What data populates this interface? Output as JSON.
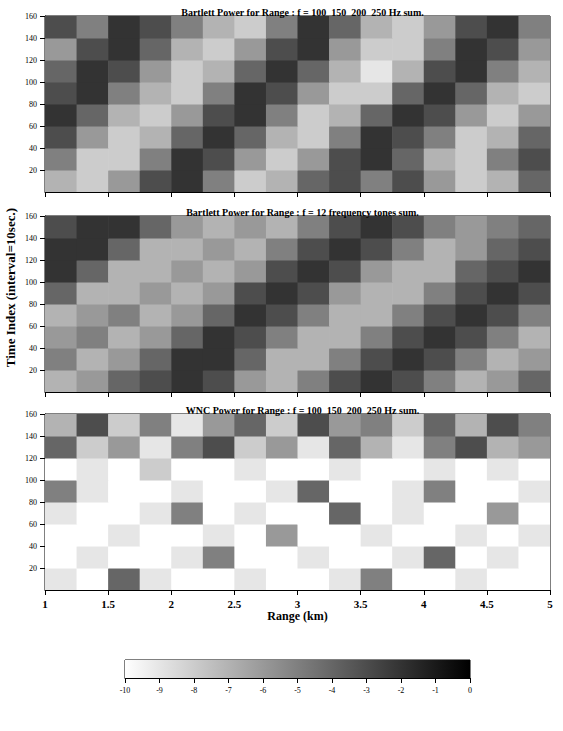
{
  "chart_data": {
    "type": "heatmap",
    "x_label": "Range (km)",
    "y_label": "Time Index (interval=10sec.)",
    "xlim": [
      1,
      5
    ],
    "xticks": [
      1,
      1.5,
      2,
      2.5,
      3,
      3.5,
      4,
      4.5,
      5
    ],
    "ylim": [
      0,
      160
    ],
    "yticks": [
      20,
      40,
      60,
      80,
      100,
      120,
      140,
      160
    ],
    "x": [
      1.125,
      1.375,
      1.625,
      1.875,
      2.125,
      2.375,
      2.625,
      2.875,
      3.125,
      3.375,
      3.625,
      3.875,
      4.125,
      4.375,
      4.625,
      4.875
    ],
    "y": [
      10,
      30,
      50,
      70,
      90,
      110,
      130,
      150
    ],
    "colorbar": {
      "range": [
        -10,
        0
      ],
      "ticks": [
        -10,
        -9,
        -8,
        -7,
        -6,
        -5,
        -4,
        -3,
        -2,
        -1,
        0
      ]
    },
    "panels": [
      {
        "title": "Bartlett Power for Range : f = 100  150  200  250 Hz sum.",
        "tick_labels": "y",
        "cells": [
          [
            -7,
            -8,
            -6,
            -3,
            -2,
            -5,
            -8,
            -7,
            -4,
            -3,
            -5,
            -3,
            -6,
            -8,
            -7,
            -4
          ],
          [
            -5,
            -8,
            -8,
            -5,
            -2,
            -3,
            -6,
            -8,
            -6,
            -3,
            -2,
            -4,
            -7,
            -8,
            -5,
            -3
          ],
          [
            -3,
            -6,
            -8,
            -7,
            -4,
            -2,
            -4,
            -7,
            -8,
            -5,
            -2,
            -3,
            -5,
            -8,
            -7,
            -4
          ],
          [
            -2,
            -4,
            -7,
            -8,
            -6,
            -3,
            -2,
            -5,
            -8,
            -7,
            -4,
            -2,
            -3,
            -6,
            -8,
            -6
          ],
          [
            -3,
            -2,
            -5,
            -7,
            -8,
            -5,
            -2,
            -3,
            -6,
            -8,
            -8,
            -4,
            -2,
            -4,
            -7,
            -8
          ],
          [
            -4,
            -2,
            -3,
            -6,
            -8,
            -7,
            -4,
            -2,
            -4,
            -7,
            -9,
            -7,
            -3,
            -2,
            -5,
            -7
          ],
          [
            -6,
            -3,
            -2,
            -4,
            -7,
            -8,
            -6,
            -3,
            -2,
            -6,
            -8,
            -8,
            -5,
            -2,
            -3,
            -6
          ],
          [
            -3,
            -5,
            -2,
            -3,
            -5,
            -7,
            -8,
            -5,
            -2,
            -4,
            -7,
            -8,
            -6,
            -3,
            -2,
            -5
          ]
        ]
      },
      {
        "title": "Bartlett Power for Range : f = 12 frequency tones sum.",
        "tick_labels": "y",
        "cells": [
          [
            -7,
            -6,
            -4,
            -3,
            -2,
            -3,
            -6,
            -7,
            -5,
            -3,
            -2,
            -3,
            -5,
            -7,
            -6,
            -4
          ],
          [
            -5,
            -7,
            -6,
            -4,
            -2,
            -2,
            -4,
            -7,
            -7,
            -5,
            -3,
            -2,
            -3,
            -5,
            -7,
            -6
          ],
          [
            -6,
            -5,
            -7,
            -6,
            -4,
            -2,
            -3,
            -5,
            -7,
            -7,
            -5,
            -3,
            -2,
            -3,
            -5,
            -7
          ],
          [
            -7,
            -6,
            -5,
            -7,
            -6,
            -4,
            -2,
            -3,
            -5,
            -7,
            -7,
            -5,
            -3,
            -2,
            -3,
            -5
          ],
          [
            -4,
            -7,
            -7,
            -6,
            -7,
            -6,
            -3,
            -2,
            -3,
            -6,
            -7,
            -7,
            -5,
            -3,
            -2,
            -3
          ],
          [
            -2,
            -4,
            -7,
            -7,
            -6,
            -7,
            -6,
            -3,
            -2,
            -3,
            -6,
            -7,
            -7,
            -4,
            -3,
            -2
          ],
          [
            -2,
            -2,
            -4,
            -7,
            -7,
            -6,
            -7,
            -5,
            -3,
            -2,
            -3,
            -5,
            -7,
            -6,
            -4,
            -3
          ],
          [
            -3,
            -2,
            -2,
            -4,
            -6,
            -7,
            -6,
            -7,
            -5,
            -3,
            -2,
            -3,
            -5,
            -6,
            -5,
            -4
          ]
        ]
      },
      {
        "title": "WNC Power for Range : f = 100  150  200  250 Hz sum.",
        "cells": [
          [
            -9,
            -10,
            -4,
            -9,
            -10,
            -10,
            -9,
            -10,
            -10,
            -9,
            -5,
            -10,
            -10,
            -9,
            -10,
            -10
          ],
          [
            -10,
            -9,
            -10,
            -10,
            -9,
            -5,
            -10,
            -10,
            -9,
            -10,
            -10,
            -9,
            -4,
            -10,
            -9,
            -10
          ],
          [
            -10,
            -10,
            -9,
            -10,
            -10,
            -9,
            -10,
            -6,
            -10,
            -10,
            -9,
            -10,
            -10,
            -9,
            -10,
            -9
          ],
          [
            -9,
            -10,
            -10,
            -9,
            -5,
            -10,
            -9,
            -10,
            -10,
            -4,
            -10,
            -9,
            -10,
            -10,
            -6,
            -10
          ],
          [
            -5,
            -9,
            -10,
            -10,
            -9,
            -10,
            -10,
            -9,
            -4,
            -10,
            -10,
            -9,
            -5,
            -10,
            -10,
            -9
          ],
          [
            -10,
            -9,
            -10,
            -8,
            -10,
            -10,
            -9,
            -10,
            -10,
            -9,
            -10,
            -10,
            -9,
            -10,
            -9,
            -10
          ],
          [
            -4,
            -8,
            -6,
            -9,
            -5,
            -3,
            -8,
            -6,
            -9,
            -4,
            -7,
            -9,
            -5,
            -3,
            -7,
            -6
          ],
          [
            -7,
            -3,
            -8,
            -5,
            -9,
            -6,
            -4,
            -8,
            -3,
            -6,
            -5,
            -8,
            -4,
            -7,
            -3,
            -5
          ]
        ]
      }
    ]
  }
}
